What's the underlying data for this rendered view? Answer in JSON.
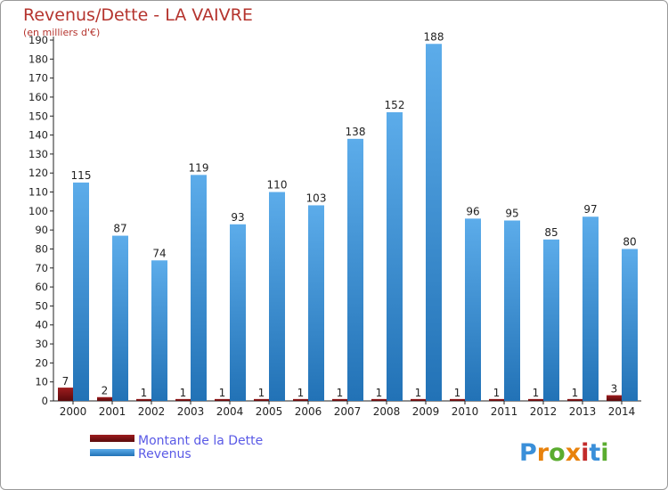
{
  "chart_data": {
    "type": "bar",
    "title": "Revenus/Dette - LA VAIVRE",
    "subtitle": "(en milliers d'€)",
    "categories": [
      "2000",
      "2001",
      "2002",
      "2003",
      "2004",
      "2005",
      "2006",
      "2007",
      "2008",
      "2009",
      "2010",
      "2011",
      "2012",
      "2013",
      "2014"
    ],
    "series": [
      {
        "name": "Montant de la Dette",
        "values": [
          7,
          2,
          1,
          1,
          1,
          1,
          1,
          1,
          1,
          1,
          1,
          1,
          1,
          1,
          3
        ],
        "color": "#7a0f12"
      },
      {
        "name": "Revenus",
        "values": [
          115,
          87,
          74,
          119,
          93,
          110,
          103,
          138,
          152,
          188,
          96,
          95,
          85,
          97,
          80
        ],
        "color": "#3c93d8"
      }
    ],
    "ylim": [
      0,
      190
    ],
    "yticks": [
      0,
      10,
      20,
      30,
      40,
      50,
      60,
      70,
      80,
      90,
      100,
      110,
      120,
      130,
      140,
      150,
      160,
      170,
      180,
      190
    ],
    "grid": false,
    "legend_position": "bottom-left"
  },
  "logo": {
    "letters": [
      "P",
      "r",
      "o",
      "x",
      "i",
      "t",
      "i"
    ],
    "colors": [
      "#3a8fd9",
      "#e8820c",
      "#5aac2f",
      "#e8820c",
      "#c22a2a",
      "#3a8fd9",
      "#5aac2f"
    ]
  }
}
